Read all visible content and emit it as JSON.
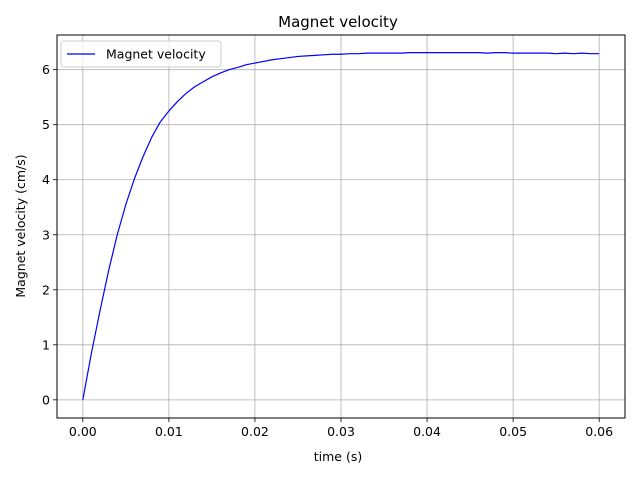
{
  "chart_data": {
    "type": "line",
    "title": "Magnet velocity",
    "xlabel": "time (s)",
    "ylabel": "Magnet velocity (cm/s)",
    "xlim": [
      -0.003,
      0.063
    ],
    "ylim": [
      -0.33,
      6.63
    ],
    "xticks": [
      0.0,
      0.01,
      0.02,
      0.03,
      0.04,
      0.05,
      0.06
    ],
    "xtick_labels": [
      "0.00",
      "0.01",
      "0.02",
      "0.03",
      "0.04",
      "0.05",
      "0.06"
    ],
    "yticks": [
      0,
      1,
      2,
      3,
      4,
      5,
      6
    ],
    "ytick_labels": [
      "0",
      "1",
      "2",
      "3",
      "4",
      "5",
      "6"
    ],
    "grid": true,
    "legend_position": "upper-left",
    "series": [
      {
        "name": "Magnet velocity",
        "color": "#0000ff",
        "x": [
          0.0,
          0.001,
          0.002,
          0.003,
          0.004,
          0.005,
          0.006,
          0.007,
          0.008,
          0.009,
          0.01,
          0.011,
          0.012,
          0.013,
          0.014,
          0.015,
          0.016,
          0.017,
          0.018,
          0.019,
          0.02,
          0.021,
          0.022,
          0.023,
          0.024,
          0.025,
          0.026,
          0.027,
          0.028,
          0.029,
          0.03,
          0.031,
          0.032,
          0.033,
          0.034,
          0.035,
          0.036,
          0.037,
          0.038,
          0.039,
          0.04,
          0.041,
          0.042,
          0.043,
          0.044,
          0.045,
          0.046,
          0.047,
          0.048,
          0.049,
          0.05,
          0.051,
          0.052,
          0.053,
          0.054,
          0.055,
          0.056,
          0.057,
          0.058,
          0.059,
          0.06
        ],
        "values": [
          0.0,
          0.85,
          1.62,
          2.35,
          3.0,
          3.55,
          4.02,
          4.42,
          4.77,
          5.05,
          5.25,
          5.42,
          5.57,
          5.69,
          5.78,
          5.87,
          5.94,
          6.0,
          6.04,
          6.09,
          6.12,
          6.15,
          6.18,
          6.2,
          6.22,
          6.24,
          6.25,
          6.26,
          6.27,
          6.28,
          6.28,
          6.29,
          6.29,
          6.3,
          6.3,
          6.3,
          6.3,
          6.3,
          6.31,
          6.31,
          6.31,
          6.31,
          6.31,
          6.31,
          6.31,
          6.31,
          6.31,
          6.3,
          6.31,
          6.31,
          6.3,
          6.3,
          6.3,
          6.3,
          6.3,
          6.29,
          6.3,
          6.29,
          6.3,
          6.29,
          6.29
        ]
      }
    ]
  }
}
